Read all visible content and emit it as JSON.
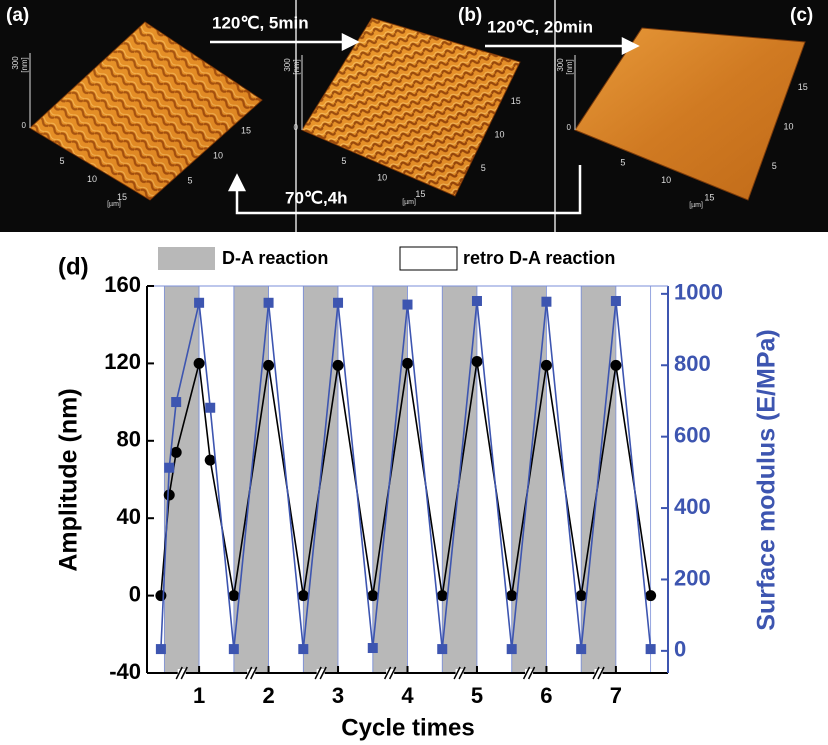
{
  "figure": {
    "panels": [
      {
        "label": "(a)",
        "z_ticks": [
          "0",
          "300"
        ],
        "z_unit": "[nm]",
        "x_ticks": [
          "5",
          "10",
          "15"
        ],
        "y_ticks": [
          "5",
          "10",
          "15"
        ],
        "unit": "[µm]"
      },
      {
        "label": "(b)",
        "z_ticks": [
          "0",
          "300"
        ],
        "z_unit": "[nm]",
        "x_ticks": [
          "5",
          "10",
          "15"
        ],
        "y_ticks": [
          "5",
          "10",
          "15"
        ],
        "unit": "[µm]"
      },
      {
        "label": "(c)",
        "z_ticks": [
          "0",
          "300"
        ],
        "z_unit": "[nm]",
        "x_ticks": [
          "5",
          "10",
          "15"
        ],
        "y_ticks": [
          "5",
          "10",
          "15"
        ],
        "unit": "[µm]"
      }
    ],
    "arrows": [
      "120℃, 5min",
      "120℃, 20min",
      "70℃,4h"
    ]
  },
  "chart_data": {
    "type": "line",
    "panel_label": "(d)",
    "x_label": "Cycle times",
    "y_label": "Amplitude (nm)",
    "y2_label": "Surface modulus (E/MPa)",
    "xlim": [
      0.25,
      7.75
    ],
    "xticks": [
      1,
      2,
      3,
      4,
      5,
      6,
      7
    ],
    "ylim": [
      -40,
      160
    ],
    "yticks": [
      -40,
      0,
      40,
      80,
      120,
      160
    ],
    "y2lim": [
      -62,
      1022
    ],
    "y2ticks": [
      0,
      200,
      400,
      600,
      800,
      1000
    ],
    "x": [
      0.45,
      0.57,
      0.67,
      1,
      1.16,
      1.5,
      2,
      2.5,
      3,
      3.5,
      4,
      4.5,
      5,
      5.5,
      6,
      6.5,
      7,
      7.5
    ],
    "series": [
      {
        "color": "#000000",
        "marker": "circle",
        "values": [
          0,
          52,
          74,
          120,
          70,
          0,
          119,
          0,
          119,
          0,
          120,
          0,
          121,
          0,
          119,
          0,
          119,
          0
        ]
      },
      {
        "color": "#3d55b0",
        "marker": "square",
        "axis": "y2",
        "values": [
          5,
          513,
          697,
          975,
          681,
          5,
          975,
          5,
          975,
          8,
          970,
          5,
          980,
          5,
          978,
          5,
          980,
          5
        ]
      }
    ],
    "shading": [
      {
        "name": "D-A reaction",
        "color": "#b8b8b8",
        "spans": [
          [
            0.5,
            1
          ],
          [
            1.5,
            2
          ],
          [
            2.5,
            3
          ],
          [
            3.5,
            4
          ],
          [
            4.5,
            5
          ],
          [
            5.5,
            6
          ],
          [
            6.5,
            7
          ]
        ]
      },
      {
        "name": "retro D-A reaction",
        "color": "#ffffff",
        "spans": [
          [
            1,
            1.5
          ],
          [
            2,
            2.5
          ],
          [
            3,
            3.5
          ],
          [
            4,
            4.5
          ],
          [
            5,
            5.5
          ],
          [
            6,
            6.5
          ],
          [
            7,
            7.5
          ]
        ]
      }
    ]
  }
}
